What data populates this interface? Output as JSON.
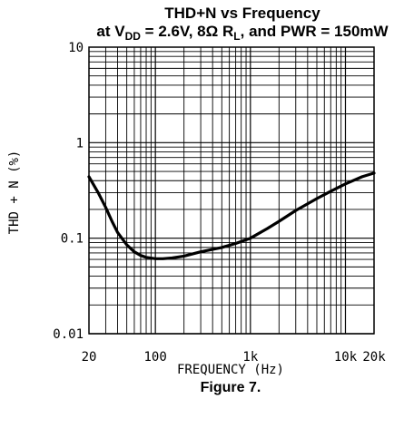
{
  "chart_data": {
    "type": "line",
    "title_line1": "THD+N vs Frequency",
    "title_line2": {
      "pre": "at V",
      "sub1": "DD",
      "mid": " = 2.6V, 8Ω R",
      "sub2": "L",
      "post": ", and PWR = 150mW"
    },
    "xlabel": "FREQUENCY (Hz)",
    "ylabel": "THD + N (%)",
    "caption": "Figure 7.",
    "xscale": "log",
    "yscale": "log",
    "xlim": [
      20,
      20000
    ],
    "ylim": [
      0.01,
      10
    ],
    "grid": true,
    "x_ticks": [
      {
        "value": 20,
        "label": "20"
      },
      {
        "value": 100,
        "label": "100"
      },
      {
        "value": 1000,
        "label": "1k"
      },
      {
        "value": 10000,
        "label": "10k"
      },
      {
        "value": 20000,
        "label": "20k"
      }
    ],
    "y_ticks": [
      {
        "value": 10,
        "label": "10"
      },
      {
        "value": 1,
        "label": "1"
      },
      {
        "value": 0.1,
        "label": "0.1"
      },
      {
        "value": 0.01,
        "label": "0.01"
      }
    ],
    "series": [
      {
        "color": "#000000",
        "x": [
          20,
          25,
          30,
          35,
          40,
          50,
          60,
          70,
          80,
          100,
          120,
          150,
          200,
          300,
          500,
          700,
          1000,
          1500,
          2000,
          3000,
          5000,
          7000,
          10000,
          15000,
          20000
        ],
        "y": [
          0.44,
          0.3,
          0.21,
          0.15,
          0.115,
          0.085,
          0.072,
          0.066,
          0.063,
          0.061,
          0.061,
          0.062,
          0.065,
          0.072,
          0.08,
          0.088,
          0.1,
          0.126,
          0.15,
          0.195,
          0.26,
          0.31,
          0.37,
          0.44,
          0.48
        ]
      }
    ]
  }
}
